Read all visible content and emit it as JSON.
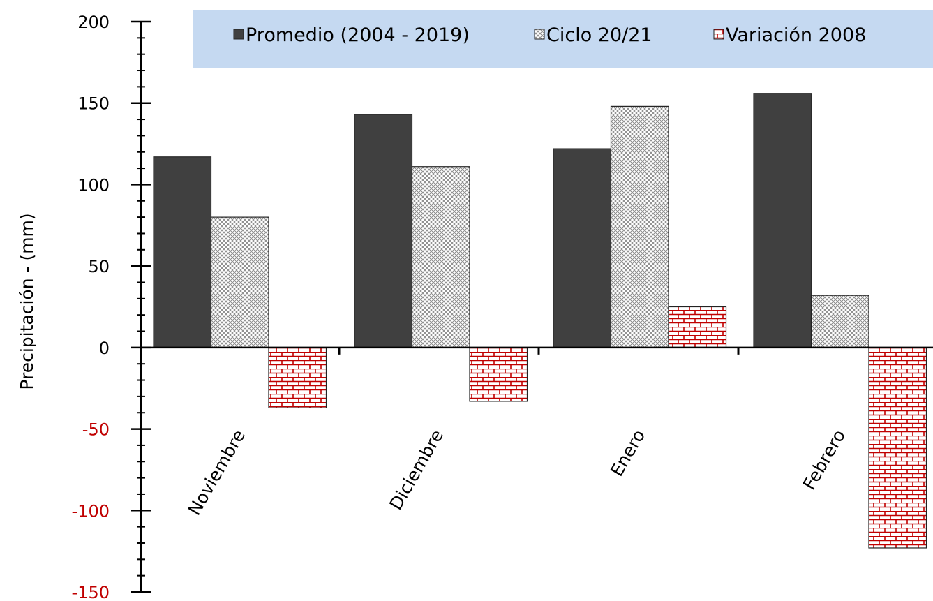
{
  "chart_data": {
    "type": "bar",
    "categories": [
      "Noviembre",
      "Diciembre",
      "Enero",
      "Febrero"
    ],
    "series": [
      {
        "name": "Promedio (2004 - 2019)",
        "values": [
          117,
          143,
          122,
          156
        ],
        "color": "#404040",
        "pattern": "solid"
      },
      {
        "name": "Ciclo 20/21",
        "values": [
          80,
          111,
          148,
          32
        ],
        "color": "#d9d9d9",
        "pattern": "crosshatch"
      },
      {
        "name": "Variación 2008",
        "values": [
          -37,
          -33,
          25,
          -123
        ],
        "color": "#c00000",
        "pattern": "brick"
      }
    ],
    "xlabel": "",
    "ylabel": "Precipitación - (mm)",
    "ylim": [
      -150,
      200
    ],
    "yticks": [
      -150,
      -100,
      -50,
      0,
      50,
      100,
      150,
      200
    ],
    "negative_tick_color": "#c00000",
    "legend_position": "top",
    "legend_background": "#c5d9f1",
    "grid": false
  }
}
